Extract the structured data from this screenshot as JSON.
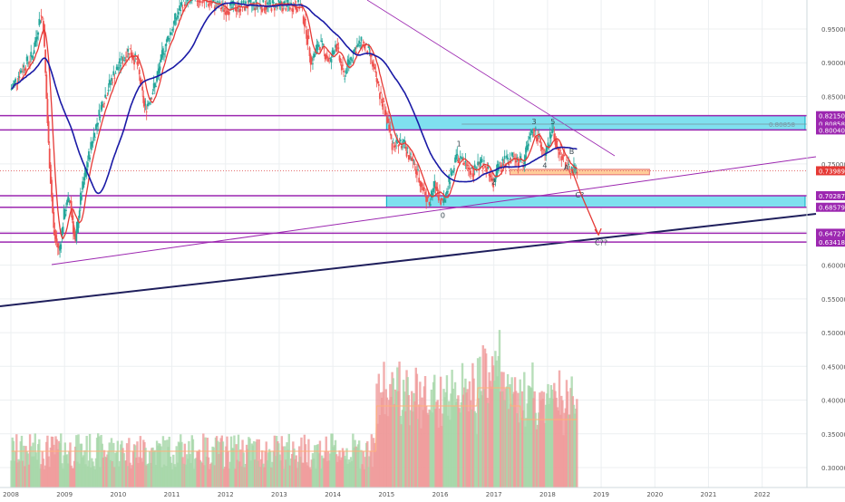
{
  "chart_data": {
    "type": "candlestick",
    "x_axis": {
      "ticks": [
        "2008",
        "2009",
        "2010",
        "2011",
        "2012",
        "2013",
        "2014",
        "2015",
        "2016",
        "2017",
        "2018",
        "2019",
        "2020",
        "2021",
        "2022"
      ],
      "range": [
        2008.0,
        2022.8
      ]
    },
    "y_axis": {
      "side": "right",
      "range": [
        0.27,
        0.99
      ],
      "ticks": [
        "0.95000",
        "0.90000",
        "0.85000",
        "0.80000",
        "0.75000",
        "0.70000",
        "0.65000",
        "0.60000",
        "0.55000",
        "0.50000",
        "0.45000",
        "0.40000",
        "0.35000",
        "0.30000"
      ],
      "tick_values": [
        0.95,
        0.9,
        0.85,
        0.8,
        0.75,
        0.7,
        0.65,
        0.6,
        0.55,
        0.5,
        0.45,
        0.4,
        0.35,
        0.3
      ]
    },
    "price_labels": [
      {
        "text": "0.82150",
        "value": 0.8215,
        "color": "#9c27b0"
      },
      {
        "text": "0.80858",
        "value": 0.80858,
        "color": "#9c27b0"
      },
      {
        "text": "0.80040",
        "value": 0.8004,
        "color": "#9c27b0"
      },
      {
        "text": "0.73989",
        "value": 0.73989,
        "color": "#e53935"
      },
      {
        "text": "0.70287",
        "value": 0.70287,
        "color": "#9c27b0"
      },
      {
        "text": "0.68579",
        "value": 0.68579,
        "color": "#9c27b0"
      },
      {
        "text": "0.64727",
        "value": 0.64727,
        "color": "#9c27b0"
      },
      {
        "text": "0.63418",
        "value": 0.63418,
        "color": "#9c27b0"
      }
    ],
    "horizontal_levels": [
      0.8215,
      0.8004,
      0.70287,
      0.68579,
      0.64727,
      0.63418
    ],
    "current_price": 0.73989,
    "zones": [
      {
        "color": "#7fe0ef",
        "from_x": 2015.0,
        "to_x": 2022.8,
        "low": 0.8004,
        "high": 0.8215
      },
      {
        "color": "#7fe0ef",
        "from_x": 2015.0,
        "to_x": 2022.8,
        "low": 0.68579,
        "high": 0.70287
      },
      {
        "color": "#ffcc99",
        "from_x": 2017.3,
        "to_x": 2019.9,
        "low": 0.734,
        "high": 0.742
      }
    ],
    "fib_text": "0.80858",
    "wave_labels": [
      {
        "text": "1",
        "x": 2016.35,
        "y": 0.776
      },
      {
        "text": "2",
        "x": 2017.0,
        "y": 0.72
      },
      {
        "text": "3",
        "x": 2017.75,
        "y": 0.809
      },
      {
        "text": "4",
        "x": 2017.95,
        "y": 0.744
      },
      {
        "text": "5",
        "x": 2018.1,
        "y": 0.809
      },
      {
        "text": "A",
        "x": 2018.35,
        "y": 0.741
      },
      {
        "text": "B",
        "x": 2018.45,
        "y": 0.765
      },
      {
        "text": "0",
        "x": 2016.05,
        "y": 0.67
      },
      {
        "text": "C?",
        "x": 2018.6,
        "y": 0.7
      },
      {
        "text": "C??",
        "x": 2019.0,
        "y": 0.63
      }
    ],
    "ohlc_key_points": [
      {
        "x": 2008.0,
        "y": 0.86
      },
      {
        "x": 2008.2,
        "y": 0.89
      },
      {
        "x": 2008.4,
        "y": 0.91
      },
      {
        "x": 2008.55,
        "y": 0.97
      },
      {
        "x": 2008.6,
        "y": 0.965
      },
      {
        "x": 2008.7,
        "y": 0.78
      },
      {
        "x": 2008.8,
        "y": 0.65
      },
      {
        "x": 2008.9,
        "y": 0.62
      },
      {
        "x": 2009.0,
        "y": 0.68
      },
      {
        "x": 2009.1,
        "y": 0.7
      },
      {
        "x": 2009.2,
        "y": 0.63
      },
      {
        "x": 2009.3,
        "y": 0.7
      },
      {
        "x": 2009.5,
        "y": 0.78
      },
      {
        "x": 2009.7,
        "y": 0.84
      },
      {
        "x": 2009.9,
        "y": 0.88
      },
      {
        "x": 2010.2,
        "y": 0.92
      },
      {
        "x": 2010.35,
        "y": 0.9
      },
      {
        "x": 2010.5,
        "y": 0.83
      },
      {
        "x": 2010.7,
        "y": 0.87
      },
      {
        "x": 2010.85,
        "y": 0.92
      },
      {
        "x": 2011.0,
        "y": 0.95
      },
      {
        "x": 2011.2,
        "y": 0.99
      },
      {
        "x": 2011.5,
        "y": 0.995
      },
      {
        "x": 2012.0,
        "y": 0.98
      },
      {
        "x": 2012.4,
        "y": 0.985
      },
      {
        "x": 2013.4,
        "y": 0.985
      },
      {
        "x": 2013.5,
        "y": 0.95
      },
      {
        "x": 2013.6,
        "y": 0.9
      },
      {
        "x": 2013.75,
        "y": 0.93
      },
      {
        "x": 2013.95,
        "y": 0.9
      },
      {
        "x": 2014.05,
        "y": 0.93
      },
      {
        "x": 2014.2,
        "y": 0.88
      },
      {
        "x": 2014.4,
        "y": 0.92
      },
      {
        "x": 2014.55,
        "y": 0.93
      },
      {
        "x": 2014.7,
        "y": 0.91
      },
      {
        "x": 2014.85,
        "y": 0.86
      },
      {
        "x": 2015.0,
        "y": 0.82
      },
      {
        "x": 2015.1,
        "y": 0.78
      },
      {
        "x": 2015.3,
        "y": 0.78
      },
      {
        "x": 2015.45,
        "y": 0.76
      },
      {
        "x": 2015.55,
        "y": 0.74
      },
      {
        "x": 2015.7,
        "y": 0.71
      },
      {
        "x": 2015.8,
        "y": 0.69
      },
      {
        "x": 2015.9,
        "y": 0.72
      },
      {
        "x": 2016.05,
        "y": 0.69
      },
      {
        "x": 2016.15,
        "y": 0.72
      },
      {
        "x": 2016.3,
        "y": 0.76
      },
      {
        "x": 2016.45,
        "y": 0.75
      },
      {
        "x": 2016.6,
        "y": 0.74
      },
      {
        "x": 2016.8,
        "y": 0.75
      },
      {
        "x": 2017.0,
        "y": 0.72
      },
      {
        "x": 2017.1,
        "y": 0.75
      },
      {
        "x": 2017.35,
        "y": 0.76
      },
      {
        "x": 2017.55,
        "y": 0.75
      },
      {
        "x": 2017.65,
        "y": 0.79
      },
      {
        "x": 2017.75,
        "y": 0.8
      },
      {
        "x": 2017.85,
        "y": 0.78
      },
      {
        "x": 2017.95,
        "y": 0.76
      },
      {
        "x": 2018.05,
        "y": 0.79
      },
      {
        "x": 2018.1,
        "y": 0.8
      },
      {
        "x": 2018.2,
        "y": 0.77
      },
      {
        "x": 2018.3,
        "y": 0.76
      },
      {
        "x": 2018.4,
        "y": 0.74
      },
      {
        "x": 2018.55,
        "y": 0.74
      }
    ],
    "volume_axis": {
      "note": "volume bars drawn under price, no printed scale"
    },
    "colors": {
      "up": "#26a69a",
      "down": "#ef5350",
      "ma_fast": "#e53935",
      "ma_slow": "#1a1aa6",
      "level": "#9c27b0",
      "trend": "#1f1f5c",
      "grid": "#eceff1",
      "volume_ma": "#ffb07a"
    }
  }
}
